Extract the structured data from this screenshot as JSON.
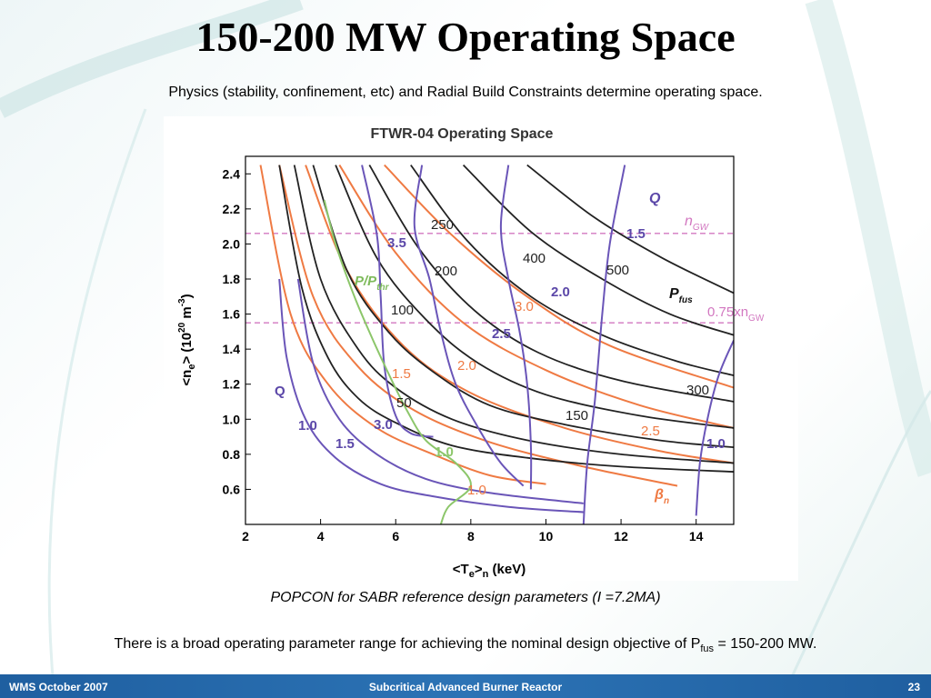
{
  "slide": {
    "title": "150-200 MW Operating Space",
    "subtitle": "Physics (stability, confinement, etc) and Radial Build Constraints determine operating space.",
    "caption": "POPCON for SABR reference design parameters (I =7.2MA)",
    "body_prefix": "There is a broad operating parameter range for achieving the nominal design objective of P",
    "body_sub": "fus",
    "body_suffix": " = 150-200 MW."
  },
  "footer": {
    "left": "WMS October 2007",
    "center": "Subcritical Advanced Burner Reactor",
    "right": "23"
  },
  "colors": {
    "pfus": "#222222",
    "q": "#6a55b8",
    "beta": "#ef7a43",
    "ppthr": "#8cc66a",
    "ngw": "#d277c0",
    "footer": "#2c73b5"
  },
  "chart_data": {
    "type": "line",
    "title": "FTWR-04 Operating Space",
    "xlabel": "<T",
    "xlabel_sub1": "e",
    "xlabel_mid": ">",
    "xlabel_sub2": "n",
    "xlabel_unit": " (keV)",
    "ylabel_pre": "<n",
    "ylabel_sub": "e",
    "ylabel_post": "> (10",
    "ylabel_sup1": "20",
    "ylabel_unit": " m",
    "ylabel_sup2": "-3",
    "ylabel_end": ")",
    "xlim": [
      2,
      15
    ],
    "ylim": [
      0.4,
      2.5
    ],
    "xticks": [
      "2",
      "4",
      "6",
      "8",
      "10",
      "12",
      "14"
    ],
    "yticks": [
      "0.6",
      "0.8",
      "1.0",
      "1.2",
      "1.4",
      "1.6",
      "1.8",
      "2.0",
      "2.2",
      "2.4"
    ],
    "pfus_labels": [
      "50",
      "100",
      "150",
      "200",
      "250",
      "300",
      "400",
      "500"
    ],
    "pfus_curves": [
      {
        "points": [
          [
            2.9,
            2.45
          ],
          [
            3.5,
            1.75
          ],
          [
            4.2,
            1.35
          ],
          [
            5,
            1.12
          ],
          [
            6,
            0.98
          ],
          [
            7.5,
            0.85
          ],
          [
            9.5,
            0.78
          ],
          [
            12,
            0.73
          ],
          [
            15,
            0.7
          ]
        ]
      },
      {
        "points": [
          [
            3.3,
            2.45
          ],
          [
            4,
            1.8
          ],
          [
            5,
            1.4
          ],
          [
            6,
            1.18
          ],
          [
            7.5,
            1.0
          ],
          [
            9.5,
            0.88
          ],
          [
            12,
            0.8
          ],
          [
            15,
            0.75
          ]
        ]
      },
      {
        "points": [
          [
            3.8,
            2.45
          ],
          [
            4.7,
            1.85
          ],
          [
            5.8,
            1.5
          ],
          [
            7,
            1.27
          ],
          [
            8.5,
            1.08
          ],
          [
            10.5,
            0.97
          ],
          [
            13,
            0.88
          ],
          [
            15,
            0.84
          ]
        ]
      },
      {
        "points": [
          [
            4.4,
            2.45
          ],
          [
            5.5,
            1.92
          ],
          [
            6.8,
            1.57
          ],
          [
            8.2,
            1.32
          ],
          [
            10,
            1.14
          ],
          [
            12.5,
            1.02
          ],
          [
            15,
            0.95
          ]
        ]
      },
      {
        "points": [
          [
            5.3,
            2.45
          ],
          [
            6.6,
            1.98
          ],
          [
            8.1,
            1.62
          ],
          [
            9.8,
            1.38
          ],
          [
            12,
            1.22
          ],
          [
            15,
            1.1
          ]
        ]
      },
      {
        "points": [
          [
            6.4,
            2.45
          ],
          [
            7.9,
            2.02
          ],
          [
            9.6,
            1.7
          ],
          [
            11.5,
            1.48
          ],
          [
            13.5,
            1.33
          ],
          [
            15,
            1.25
          ]
        ]
      },
      {
        "points": [
          [
            7.8,
            2.45
          ],
          [
            9.6,
            2.07
          ],
          [
            11.5,
            1.8
          ],
          [
            13.3,
            1.6
          ],
          [
            15,
            1.48
          ]
        ]
      },
      {
        "points": [
          [
            9.5,
            2.45
          ],
          [
            11.3,
            2.15
          ],
          [
            13.1,
            1.92
          ],
          [
            15,
            1.72
          ]
        ]
      }
    ],
    "q_curves": [
      {
        "points": [
          [
            2.9,
            1.8
          ],
          [
            3.1,
            1.35
          ],
          [
            3.6,
            1.0
          ],
          [
            4.4,
            0.78
          ],
          [
            5.6,
            0.63
          ],
          [
            7,
            0.56
          ],
          [
            9,
            0.5
          ],
          [
            11,
            0.47
          ]
        ]
      },
      {
        "points": [
          [
            3.4,
            1.8
          ],
          [
            3.8,
            1.32
          ],
          [
            4.5,
            1.0
          ],
          [
            5.5,
            0.8
          ],
          [
            6.8,
            0.66
          ],
          [
            8.5,
            0.58
          ],
          [
            11,
            0.52
          ]
        ]
      },
      {
        "points": [
          [
            5.1,
            2.45
          ],
          [
            5.5,
            2.05
          ],
          [
            5.6,
            1.7
          ],
          [
            5.7,
            1.3
          ],
          [
            6,
            1.02
          ],
          [
            6.4,
            0.92
          ],
          [
            7,
            0.9
          ]
        ]
      },
      {
        "points": [
          [
            6.7,
            2.45
          ],
          [
            6.5,
            2.1
          ],
          [
            6.9,
            1.8
          ],
          [
            7.2,
            1.5
          ],
          [
            7.6,
            1.2
          ],
          [
            8.2,
            0.95
          ],
          [
            8.8,
            0.75
          ],
          [
            9.4,
            0.62
          ]
        ]
      },
      {
        "points": [
          [
            9,
            2.45
          ],
          [
            8.8,
            2.1
          ],
          [
            9,
            1.8
          ],
          [
            9.3,
            1.5
          ],
          [
            9.5,
            1.2
          ],
          [
            9.6,
            0.85
          ],
          [
            9.6,
            0.6
          ]
        ]
      },
      {
        "points": [
          [
            12.1,
            2.45
          ],
          [
            11.7,
            2.0
          ],
          [
            11.5,
            1.6
          ],
          [
            11.3,
            1.1
          ],
          [
            11.1,
            0.75
          ],
          [
            11,
            0.4
          ]
        ]
      },
      {
        "points": [
          [
            15,
            1.45
          ],
          [
            14.6,
            1.25
          ],
          [
            14.3,
            1.0
          ],
          [
            14.1,
            0.75
          ],
          [
            14,
            0.45
          ]
        ]
      }
    ],
    "q_labels": [
      "Q",
      "1.0",
      "1.5",
      "3.0",
      "3.5",
      "1.0",
      "2.5",
      "2.0",
      "1.5",
      "Q",
      "1.0"
    ],
    "beta_curves": [
      {
        "points": [
          [
            2.4,
            2.45
          ],
          [
            3.2,
            1.6
          ],
          [
            4.2,
            1.2
          ],
          [
            5.5,
            0.95
          ],
          [
            7,
            0.8
          ],
          [
            8.5,
            0.68
          ],
          [
            10,
            0.63
          ]
        ]
      },
      {
        "points": [
          [
            2.9,
            2.45
          ],
          [
            3.8,
            1.7
          ],
          [
            5,
            1.3
          ],
          [
            6.5,
            1.05
          ],
          [
            8.5,
            0.87
          ],
          [
            11,
            0.73
          ],
          [
            13.5,
            0.62
          ]
        ]
      },
      {
        "points": [
          [
            3.6,
            2.45
          ],
          [
            4.7,
            1.85
          ],
          [
            6.2,
            1.42
          ],
          [
            8,
            1.15
          ],
          [
            10.5,
            0.95
          ],
          [
            13,
            0.82
          ],
          [
            15,
            0.75
          ]
        ]
      },
      {
        "points": [
          [
            4.5,
            2.45
          ],
          [
            6,
            1.95
          ],
          [
            7.8,
            1.55
          ],
          [
            10,
            1.28
          ],
          [
            12.5,
            1.08
          ],
          [
            15,
            0.95
          ]
        ]
      },
      {
        "points": [
          [
            5.7,
            2.45
          ],
          [
            7.5,
            2.05
          ],
          [
            9.5,
            1.7
          ],
          [
            11.7,
            1.42
          ],
          [
            15,
            1.18
          ]
        ]
      }
    ],
    "beta_labels": [
      "1.0",
      "1.5",
      "2.0",
      "2.5",
      "3.0",
      "β",
      "n"
    ],
    "ppthr_curve": [
      [
        4.1,
        2.25
      ],
      [
        4.4,
        2.0
      ],
      [
        4.9,
        1.7
      ],
      [
        5.4,
        1.45
      ],
      [
        5.9,
        1.22
      ],
      [
        6.3,
        1.05
      ],
      [
        6.8,
        0.88
      ],
      [
        7.6,
        0.75
      ],
      [
        8,
        0.62
      ],
      [
        7.4,
        0.5
      ],
      [
        7.2,
        0.4
      ]
    ],
    "ppthr_label": "P/P",
    "ppthr_sub": "thr",
    "ngw_level": 2.06,
    "ngw_label": "n",
    "ngw_sub": "GW",
    "ngw75_level": 1.55,
    "ngw75_label": "0.75xn",
    "ngw75_sub": "GW",
    "pfus_legend": "P",
    "pfus_legend_sub": "fus",
    "q_legend": "Q",
    "q_15_label": "1.5",
    "grid": false,
    "legend": "inline"
  }
}
